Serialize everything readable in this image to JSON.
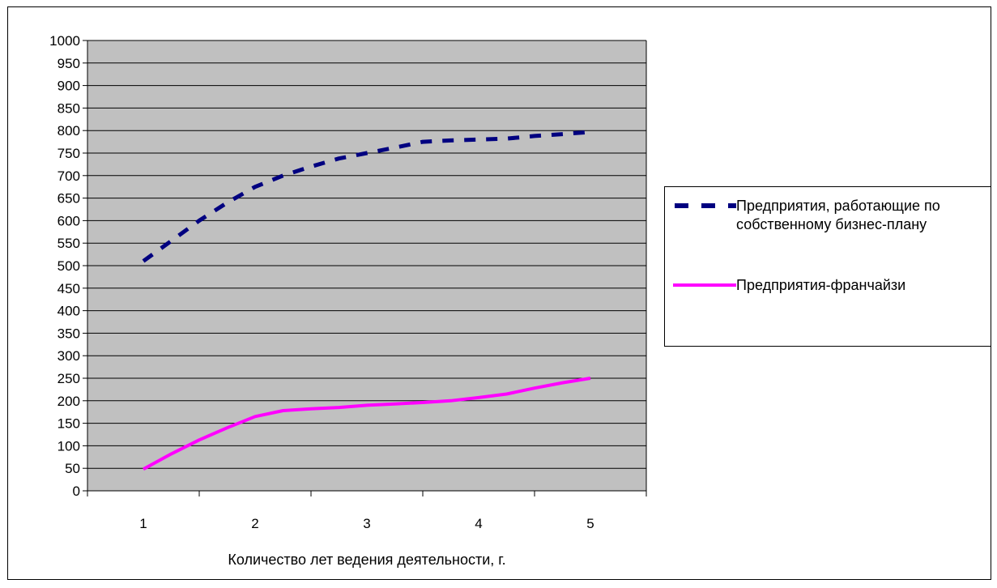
{
  "chart_data": {
    "type": "line",
    "xlabel": "Количество лет ведения деятельности, г.",
    "ylabel": "",
    "categories": [
      "1",
      "2",
      "3",
      "4",
      "5"
    ],
    "ylim": [
      0,
      1000
    ],
    "yticks": [
      0,
      50,
      100,
      150,
      200,
      250,
      300,
      350,
      400,
      450,
      500,
      550,
      600,
      650,
      700,
      750,
      800,
      850,
      900,
      950,
      1000
    ],
    "grid": true,
    "legend_position": "right",
    "plot_background": "#c0c0c0",
    "series": [
      {
        "name": "Предприятия, работающие по собственному бизнес-плану",
        "color": "#000080",
        "style": "dashed",
        "x": [
          1,
          1.25,
          1.5,
          1.75,
          2,
          2.25,
          2.5,
          2.75,
          3,
          3.25,
          3.5,
          3.75,
          4,
          4.25,
          4.5,
          4.75,
          5
        ],
        "values": [
          510,
          555,
          600,
          640,
          675,
          700,
          720,
          738,
          750,
          762,
          775,
          778,
          780,
          782,
          788,
          792,
          797
        ]
      },
      {
        "name": "Предприятия-франчайзи",
        "color": "#ff00ff",
        "style": "solid",
        "x": [
          1,
          1.25,
          1.5,
          1.75,
          2,
          2.25,
          2.5,
          2.75,
          3,
          3.25,
          3.5,
          3.75,
          4,
          4.25,
          4.5,
          4.75,
          5
        ],
        "values": [
          48,
          82,
          113,
          140,
          165,
          178,
          182,
          185,
          190,
          193,
          196,
          200,
          207,
          215,
          228,
          240,
          250
        ]
      }
    ]
  }
}
